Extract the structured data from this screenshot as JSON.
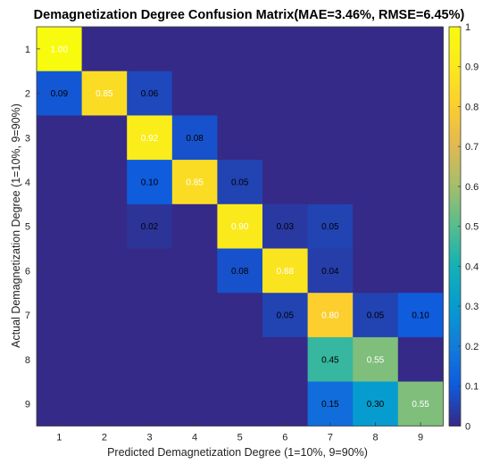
{
  "chart_data": {
    "type": "heatmap",
    "title": "Demagnetization Degree Confusion Matrix(MAE=3.46%, RMSE=6.45%)",
    "xlabel": "Predicted Demagnetization Degree (1=10%, 9=90%)",
    "ylabel": "Actual Demagnetization Degree (1=10%, 9=90%)",
    "x_categories": [
      "1",
      "2",
      "3",
      "4",
      "5",
      "6",
      "7",
      "8",
      "9"
    ],
    "y_categories": [
      "1",
      "2",
      "3",
      "4",
      "5",
      "6",
      "7",
      "8",
      "9"
    ],
    "colorbar": {
      "min": 0,
      "max": 1,
      "colormap": "parula",
      "ticks": [
        "0",
        "0.1",
        "0.2",
        "0.3",
        "0.4",
        "0.5",
        "0.6",
        "0.7",
        "0.8",
        "0.9",
        "1"
      ]
    },
    "matrix": [
      [
        1.0,
        0,
        0,
        0,
        0,
        0,
        0,
        0,
        0
      ],
      [
        0.09,
        0.85,
        0.06,
        0,
        0,
        0,
        0,
        0,
        0
      ],
      [
        0,
        0,
        0.92,
        0.08,
        0,
        0,
        0,
        0,
        0
      ],
      [
        0,
        0,
        0.1,
        0.85,
        0.05,
        0,
        0,
        0,
        0
      ],
      [
        0,
        0,
        0.02,
        0,
        0.9,
        0.03,
        0.05,
        0,
        0
      ],
      [
        0,
        0,
        0,
        0,
        0.08,
        0.88,
        0.04,
        0,
        0
      ],
      [
        0,
        0,
        0,
        0,
        0,
        0.05,
        0.8,
        0.05,
        0.1
      ],
      [
        0,
        0,
        0,
        0,
        0,
        0,
        0.45,
        0.55,
        0
      ],
      [
        0,
        0,
        0,
        0,
        0,
        0,
        0.15,
        0.3,
        0.55
      ]
    ],
    "labels": [
      [
        "1.00",
        "",
        "",
        "",
        "",
        "",
        "",
        "",
        ""
      ],
      [
        "0.09",
        "0.85",
        "0.06",
        "",
        "",
        "",
        "",
        "",
        ""
      ],
      [
        "",
        "",
        "0.92",
        "0.08",
        "",
        "",
        "",
        "",
        ""
      ],
      [
        "",
        "",
        "0.10",
        "0.85",
        "0.05",
        "",
        "",
        "",
        ""
      ],
      [
        "",
        "",
        "0.02",
        "",
        "0.90",
        "0.03",
        "0.05",
        "",
        ""
      ],
      [
        "",
        "",
        "",
        "",
        "0.08",
        "0.88",
        "0.04",
        "",
        ""
      ],
      [
        "",
        "",
        "",
        "",
        "",
        "0.05",
        "0.80",
        "0.05",
        "0.10"
      ],
      [
        "",
        "",
        "",
        "",
        "",
        "",
        "0.45",
        "0.55",
        ""
      ],
      [
        "",
        "",
        "",
        "",
        "",
        "",
        "0.15",
        "0.30",
        "0.55"
      ]
    ],
    "grid": false
  }
}
